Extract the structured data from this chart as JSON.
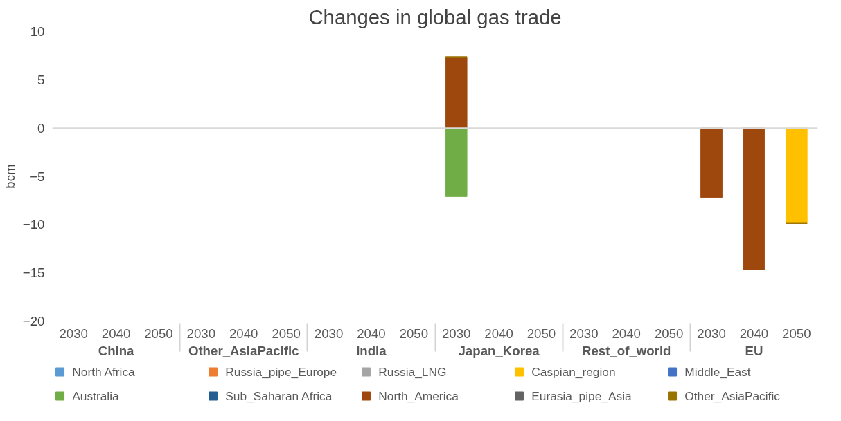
{
  "chart_data": {
    "type": "bar",
    "title": "Changes in global gas trade",
    "ylabel": "bcm",
    "categories": [
      "2030",
      "2040",
      "2050",
      "2030",
      "2040",
      "2050",
      "2030",
      "2040",
      "2050",
      "2030",
      "2040",
      "2050",
      "2030",
      "2040",
      "2050",
      "2030",
      "2040",
      "2050"
    ],
    "annotations": [
      "China",
      "Other_AsiaPacific",
      "India",
      "Japan_Korea",
      "Rest_of_world",
      "EU"
    ],
    "stacked": true,
    "ylim": [
      -20,
      10
    ],
    "yticks": [
      -20,
      -15,
      -10,
      -5,
      0,
      5,
      10
    ],
    "grid": false,
    "legend": "bottom",
    "ref_lines": [
      {
        "axis": "y",
        "value": 0,
        "color": "#d9d9d9"
      }
    ],
    "series": [
      {
        "name": "North Africa",
        "color": "#5b9bd5",
        "values": [
          null,
          null,
          null,
          null,
          null,
          null,
          null,
          null,
          null,
          null,
          null,
          null,
          null,
          null,
          null,
          null,
          null,
          null
        ]
      },
      {
        "name": "Russia_pipe_Europe",
        "color": "#ed7d31",
        "values": [
          null,
          null,
          null,
          null,
          null,
          null,
          null,
          null,
          null,
          null,
          null,
          null,
          null,
          null,
          null,
          null,
          null,
          null
        ]
      },
      {
        "name": "Russia_LNG",
        "color": "#a5a5a5",
        "values": [
          null,
          null,
          null,
          null,
          null,
          null,
          null,
          null,
          null,
          null,
          null,
          null,
          null,
          null,
          null,
          null,
          null,
          null
        ]
      },
      {
        "name": "Caspian_region",
        "color": "#ffc000",
        "values": [
          null,
          null,
          null,
          null,
          null,
          null,
          null,
          null,
          null,
          null,
          null,
          null,
          null,
          null,
          null,
          null,
          null,
          -9.8
        ]
      },
      {
        "name": "Middle_East",
        "color": "#4472c4",
        "values": [
          null,
          null,
          null,
          null,
          null,
          null,
          null,
          null,
          null,
          null,
          null,
          null,
          null,
          null,
          null,
          null,
          null,
          null
        ]
      },
      {
        "name": "Australia",
        "color": "#70ad47",
        "values": [
          null,
          null,
          null,
          null,
          null,
          null,
          null,
          null,
          null,
          -7.1,
          null,
          null,
          null,
          null,
          null,
          null,
          null,
          null
        ]
      },
      {
        "name": "Sub_Saharan Africa",
        "color": "#255e91",
        "values": [
          null,
          null,
          null,
          null,
          null,
          null,
          null,
          null,
          null,
          null,
          null,
          null,
          null,
          null,
          null,
          null,
          null,
          null
        ]
      },
      {
        "name": "North_America",
        "color": "#9e480e",
        "values": [
          null,
          null,
          null,
          null,
          null,
          null,
          null,
          null,
          null,
          7.3,
          null,
          null,
          null,
          null,
          null,
          -7.2,
          -14.7,
          null
        ]
      },
      {
        "name": "Eurasia_pipe_Asia",
        "color": "#636363",
        "values": [
          null,
          null,
          null,
          null,
          null,
          null,
          null,
          null,
          null,
          null,
          null,
          null,
          null,
          null,
          null,
          null,
          null,
          null
        ]
      },
      {
        "name": "Other_AsiaPacific",
        "color": "#997300",
        "values": [
          null,
          null,
          null,
          null,
          null,
          null,
          null,
          null,
          null,
          0.1,
          null,
          null,
          null,
          null,
          null,
          null,
          null,
          -0.1
        ]
      }
    ]
  }
}
